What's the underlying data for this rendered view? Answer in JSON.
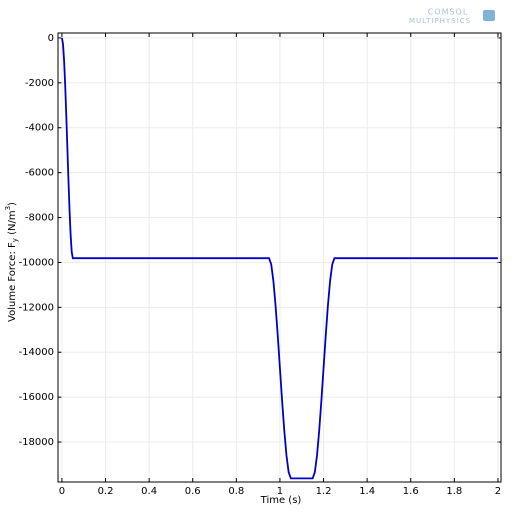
{
  "chart_data": {
    "type": "line",
    "logo": [
      "COMSOL",
      "MULTIPHYSICS"
    ],
    "xlabel": "Time (s)",
    "ylabel": [
      "Volume Force: F",
      "y",
      " (N/m",
      "3",
      ")"
    ],
    "x": [
      0,
      0.005,
      0.01,
      0.015,
      0.02,
      0.025,
      0.03,
      0.035,
      0.04,
      0.045,
      0.05,
      0.95,
      0.96,
      0.97,
      0.98,
      0.99,
      1.0,
      1.01,
      1.02,
      1.03,
      1.04,
      1.05,
      1.15,
      1.16,
      1.17,
      1.18,
      1.19,
      1.2,
      1.21,
      1.22,
      1.23,
      1.24,
      1.25,
      2.0
    ],
    "series": [
      {
        "color": "#0000cc",
        "values": [
          0,
          -275,
          -1020,
          -2119,
          -3453,
          -4905,
          -6357,
          -7691,
          -8790,
          -9535,
          -9810,
          -9810,
          -10085,
          -10830,
          -11929,
          -13263,
          -14715,
          -16167,
          -17501,
          -18600,
          -19345,
          -19620,
          -19620,
          -19345,
          -18600,
          -17501,
          -16167,
          -14715,
          -13263,
          -11929,
          -10830,
          -10085,
          -9810,
          -9810
        ]
      }
    ],
    "xlim": [
      -0.018,
      2.014
    ],
    "ylim": [
      -19780,
      220
    ],
    "xticks": [
      0,
      0.2,
      0.4,
      0.6,
      0.8,
      1,
      1.2,
      1.4,
      1.6,
      1.8,
      2
    ],
    "yticks": [
      0,
      -2000,
      -4000,
      -6000,
      -8000,
      -10000,
      -12000,
      -14000,
      -16000,
      -18000
    ],
    "grid": true
  }
}
